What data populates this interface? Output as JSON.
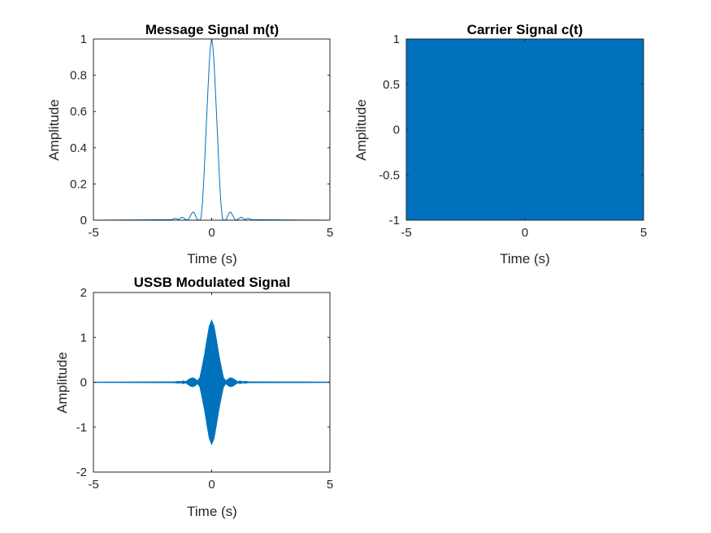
{
  "figure": {
    "background": "#ffffff",
    "line_color": "#0072BD"
  },
  "chart_data": [
    {
      "type": "line",
      "title": "Message Signal m(t)",
      "xlabel": "Time (s)",
      "ylabel": "Amplitude",
      "xlim": [
        -5,
        5
      ],
      "ylim": [
        0,
        1
      ],
      "xticks": [
        "-5",
        "0",
        "5"
      ],
      "yticks": [
        "0",
        "0.2",
        "0.4",
        "0.6",
        "0.8",
        "1"
      ],
      "grid": false,
      "series": [
        {
          "x": [
            -5.0,
            -2.0,
            -1.7,
            -1.55,
            -1.4,
            -1.25,
            -1.1,
            -1.0,
            -0.95,
            -0.85,
            -0.8,
            -0.75,
            -0.7,
            -0.65,
            -0.6,
            -0.55,
            -0.5,
            -0.45,
            -0.4,
            -0.35,
            -0.3,
            -0.25,
            -0.2,
            -0.15,
            -0.1,
            -0.05,
            0.0,
            0.05,
            0.1,
            0.15,
            0.2,
            0.25,
            0.3,
            0.35,
            0.4,
            0.45,
            0.5,
            0.55,
            0.6,
            0.65,
            0.7,
            0.75,
            0.8,
            0.85,
            0.95,
            1.0,
            1.1,
            1.25,
            1.4,
            1.55,
            1.7,
            2.0,
            5.0
          ],
          "y": [
            0.0,
            0.003,
            0.003,
            0.01,
            0.004,
            0.017,
            0.005,
            0.0,
            0.012,
            0.035,
            0.045,
            0.043,
            0.03,
            0.014,
            0.002,
            0.001,
            0.0,
            0.011,
            0.078,
            0.18,
            0.31,
            0.46,
            0.6,
            0.74,
            0.87,
            0.96,
            1.0,
            0.96,
            0.87,
            0.74,
            0.6,
            0.46,
            0.31,
            0.18,
            0.078,
            0.011,
            0.0,
            0.001,
            0.002,
            0.014,
            0.03,
            0.043,
            0.045,
            0.035,
            0.012,
            0.0,
            0.005,
            0.017,
            0.004,
            0.01,
            0.003,
            0.003,
            0.0
          ]
        }
      ]
    },
    {
      "type": "area",
      "title": "Carrier Signal c(t)",
      "xlabel": "Time (s)",
      "ylabel": "Amplitude",
      "xlim": [
        -5,
        5
      ],
      "ylim": [
        -1,
        1
      ],
      "xticks": [
        "-5",
        "0",
        "5"
      ],
      "yticks": [
        "-1",
        "-0.5",
        "0",
        "0.5",
        "1"
      ],
      "grid": false,
      "series": [
        {
          "x": [
            -5,
            5
          ],
          "upper": [
            1,
            1
          ],
          "lower": [
            -1,
            -1
          ]
        }
      ]
    },
    {
      "type": "area",
      "title": "USSB Modulated Signal",
      "xlabel": "Time (s)",
      "ylabel": "Amplitude",
      "xlim": [
        -5,
        5
      ],
      "ylim": [
        -2,
        2
      ],
      "xticks": [
        "-5",
        "0",
        "5"
      ],
      "yticks": [
        "-2",
        "-1",
        "0",
        "1",
        "2"
      ],
      "grid": false,
      "series": [
        {
          "x": [
            -5.0,
            -1.6,
            -1.4,
            -1.3,
            -1.2,
            -1.1,
            -1.0,
            -0.9,
            -0.8,
            -0.7,
            -0.6,
            -0.5,
            -0.4,
            -0.3,
            -0.2,
            -0.1,
            0.0,
            0.1,
            0.2,
            0.3,
            0.4,
            0.5,
            0.6,
            0.7,
            0.8,
            0.9,
            1.0,
            1.1,
            1.2,
            1.3,
            1.4,
            1.6,
            5.0
          ],
          "upper": [
            0.005,
            0.008,
            0.02,
            0.012,
            0.03,
            0.012,
            0.05,
            0.085,
            0.1,
            0.075,
            0.03,
            0.1,
            0.35,
            0.62,
            0.95,
            1.25,
            1.38,
            1.25,
            0.95,
            0.62,
            0.35,
            0.1,
            0.03,
            0.075,
            0.1,
            0.085,
            0.05,
            0.012,
            0.03,
            0.012,
            0.02,
            0.008,
            0.005
          ],
          "lower": [
            -0.005,
            -0.008,
            -0.02,
            -0.012,
            -0.03,
            -0.012,
            -0.05,
            -0.085,
            -0.1,
            -0.075,
            -0.03,
            -0.1,
            -0.35,
            -0.62,
            -0.95,
            -1.25,
            -1.38,
            -1.25,
            -0.95,
            -0.62,
            -0.35,
            -0.1,
            -0.03,
            -0.075,
            -0.1,
            -0.085,
            -0.05,
            -0.012,
            -0.03,
            -0.012,
            -0.02,
            -0.008,
            -0.005
          ]
        }
      ]
    }
  ]
}
